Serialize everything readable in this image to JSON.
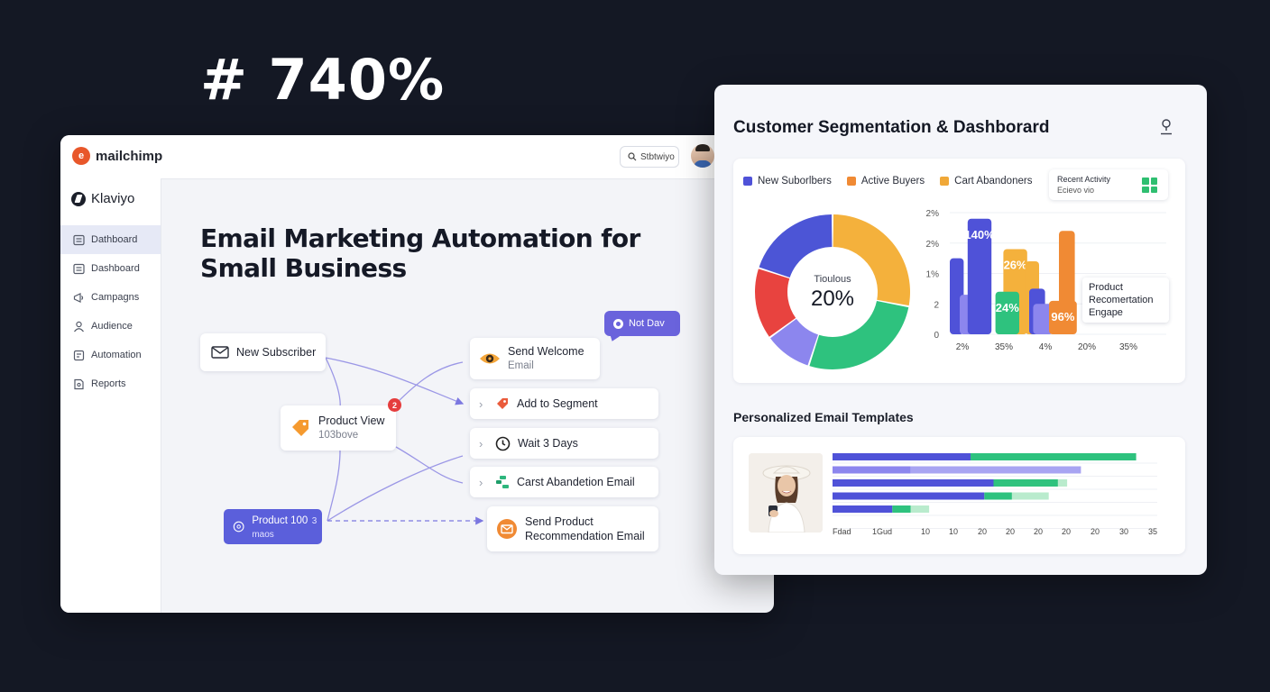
{
  "headline": "# 740%",
  "app": {
    "brand": "mailchimp",
    "search_label": "Stbtwiyo",
    "sidebar_brand": "Klaviyo",
    "nav": [
      {
        "label": "Dathboard",
        "icon": "dashboard-icon",
        "active": true
      },
      {
        "label": "Dashboard",
        "icon": "dashboard-icon",
        "active": false
      },
      {
        "label": "Campagns",
        "icon": "megaphone-icon",
        "active": false
      },
      {
        "label": "Audience",
        "icon": "user-icon",
        "active": false
      },
      {
        "label": "Automation",
        "icon": "automation-icon",
        "active": false
      },
      {
        "label": "Reports",
        "icon": "reports-icon",
        "active": false
      }
    ],
    "title": "Email Marketing Automation for Small Business"
  },
  "flow": {
    "new_subscriber": "New Subscriber",
    "product_view": {
      "title": "Product View",
      "sub": "103bove",
      "badge": "2"
    },
    "product_purple": {
      "title": "Product 100",
      "sub": "3 maos"
    },
    "tooltip": "Not Dav",
    "send_welcome": {
      "title": "Send Welcome",
      "sub": "Email"
    },
    "add_segment": "Add to Segment",
    "wait": "Wait 3 Days",
    "cart": "Carst Abandetion Email",
    "send_product": {
      "line1": "Send Product",
      "line2": "Recommendation Email"
    }
  },
  "dashboard": {
    "title": "Customer Segmentation & Dashborard",
    "legend": [
      {
        "label": "New Suborlbers",
        "color": "#4f52d8"
      },
      {
        "label": "Active Buyers",
        "color": "#f08a34"
      },
      {
        "label": "Cart Abandoners",
        "color": "#f0a838"
      }
    ],
    "recent_activity": {
      "title": "Recent Activity",
      "sub": "Ecievo vio"
    },
    "donut_label": "Tioulous",
    "donut_value": "20%",
    "bar_popup": [
      "Product",
      "Recomertation",
      "Engape"
    ],
    "templates_title": "Personalized Email Templates"
  },
  "chart_data": [
    {
      "type": "pie",
      "title": "",
      "center_label": "Tioulous",
      "center_value": "20%",
      "slices": [
        {
          "value": 28,
          "color": "#f4b13c"
        },
        {
          "value": 27,
          "color": "#2ec27e"
        },
        {
          "value": 10,
          "color": "#8c86ee"
        },
        {
          "value": 15,
          "color": "#e8433f"
        },
        {
          "value": 20,
          "color": "#4c55d6"
        }
      ]
    },
    {
      "type": "bar",
      "y_ticks": [
        "0",
        "2",
        "1%",
        "2%",
        "2%"
      ],
      "x_ticks": [
        "2%",
        "35%",
        "4%",
        "20%",
        "35%"
      ],
      "data_labels": [
        "140%",
        "26%",
        "24%",
        "96%"
      ],
      "bars": [
        {
          "value": 2.5,
          "color": "#4f52d8",
          "x": 0.0,
          "w": 0.7
        },
        {
          "value": 1.3,
          "color": "#8c86ee",
          "x": 0.5,
          "w": 1.0
        },
        {
          "value": 3.8,
          "color": "#4f52d8",
          "x": 0.9,
          "w": 1.2,
          "label": "140%"
        },
        {
          "value": 2.8,
          "color": "#f4b13c",
          "x": 2.7,
          "w": 1.2,
          "label": "26%"
        },
        {
          "value": 1.4,
          "color": "#2ec27e",
          "x": 2.3,
          "w": 1.2,
          "label": "24%"
        },
        {
          "value": 2.4,
          "color": "#f4b13c",
          "x": 3.8,
          "w": 0.7
        },
        {
          "value": 1.5,
          "color": "#4f52d8",
          "x": 4.0,
          "w": 0.8
        },
        {
          "value": 1.0,
          "color": "#8c86ee",
          "x": 4.2,
          "w": 1.0
        },
        {
          "value": 3.4,
          "color": "#f08a34",
          "x": 5.5,
          "w": 0.8
        },
        {
          "value": 1.1,
          "color": "#f08a34",
          "x": 5.0,
          "w": 1.4,
          "label": "96%"
        }
      ],
      "popup": [
        "Product",
        "Recomertation",
        "Engape"
      ]
    },
    {
      "type": "bar",
      "orientation": "horizontal",
      "title": "Personalized Email Templates",
      "x_ticks": [
        "Fdad",
        "1Gud",
        "10",
        "10",
        "20",
        "20",
        "20",
        "20",
        "20",
        "30",
        "35"
      ],
      "rows": [
        {
          "segments": [
            {
              "value": 15,
              "color": "#4f52d8"
            },
            {
              "value": 18,
              "color": "#2ec27e"
            }
          ]
        },
        {
          "segments": [
            {
              "value": 8.5,
              "color": "#8c86ee"
            },
            {
              "value": 18.5,
              "color": "#a8a4f2"
            }
          ]
        },
        {
          "segments": [
            {
              "value": 17.5,
              "color": "#4f52d8"
            },
            {
              "value": 7,
              "color": "#2ec27e"
            },
            {
              "value": 1,
              "color": "#b9ebcd"
            }
          ]
        },
        {
          "segments": [
            {
              "value": 16.5,
              "color": "#4f52d8"
            },
            {
              "value": 3,
              "color": "#2ec27e"
            },
            {
              "value": 4,
              "color": "#b9ebcd"
            }
          ]
        },
        {
          "segments": [
            {
              "value": 6.5,
              "color": "#4f52d8"
            },
            {
              "value": 2,
              "color": "#2ec27e"
            },
            {
              "value": 2,
              "color": "#b9ebcd"
            }
          ]
        }
      ]
    }
  ]
}
